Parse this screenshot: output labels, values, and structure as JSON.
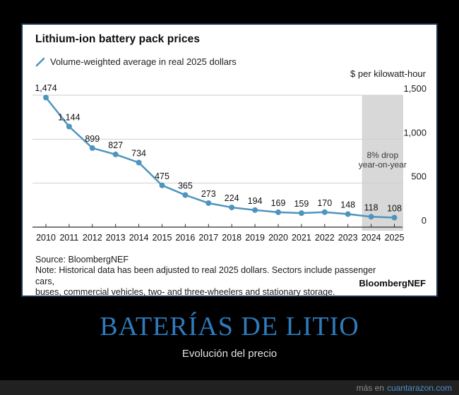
{
  "chart": {
    "title": "Lithium-ion battery pack prices",
    "legend_label": "Volume-weighted average in real 2025 dollars",
    "unit_label": "$ per kilowatt-hour",
    "source": "Source: BloombergNEF",
    "note_lines": [
      "Note: Historical data has been adjusted to real 2025 dollars. Sectors include passenger cars,",
      "buses, commercial vehicles, two- and three-wheelers and stationary storage."
    ],
    "brand": "BloombergNEF"
  },
  "chart_data": {
    "type": "line",
    "title": "Lithium-ion battery pack prices",
    "legend": [
      "Volume-weighted average in real 2025 dollars"
    ],
    "ylabel": "$ per kilowatt-hour",
    "x": [
      2010,
      2011,
      2012,
      2013,
      2014,
      2015,
      2016,
      2017,
      2018,
      2019,
      2020,
      2021,
      2022,
      2023,
      2024,
      2025
    ],
    "values": [
      1474,
      1144,
      899,
      827,
      734,
      475,
      365,
      273,
      224,
      194,
      169,
      159,
      170,
      148,
      118,
      108
    ],
    "ylim": [
      0,
      1500
    ],
    "yticks": [
      0,
      500,
      1000,
      1500
    ],
    "grid": true,
    "legend_position": "top-left",
    "highlight_band": {
      "from": 2024,
      "to": 2025,
      "annotation_lines": [
        "8% drop",
        "year-on-year"
      ]
    },
    "colors": {
      "line": "#4e94bc",
      "band": "#d8d8d8",
      "grid": "#cfcfcf",
      "axis": "#2e2e2e"
    }
  },
  "meme": {
    "title": "BATERÍAS DE LITIO",
    "subtitle": "Evolución del precio"
  },
  "footer": {
    "prefix": "más en",
    "site": "cuantarazon.com"
  }
}
